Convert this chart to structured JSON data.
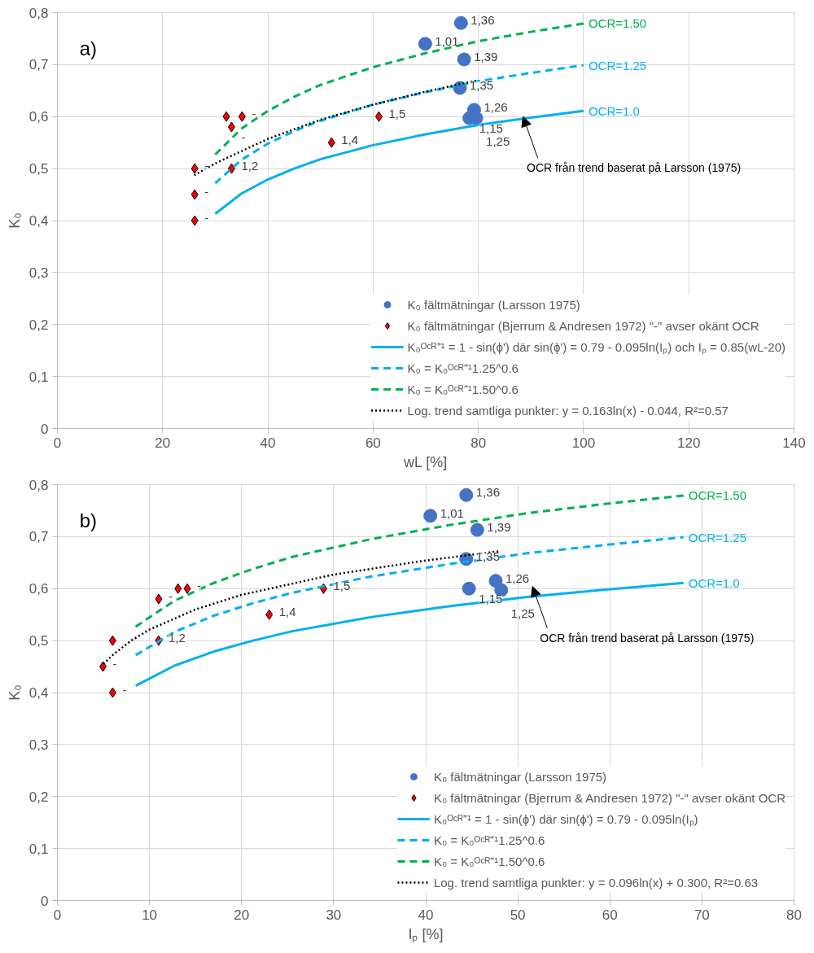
{
  "chart_data": [
    {
      "type": "scatter",
      "xlabel": "wL [%]",
      "ylabel": "K₀",
      "xlim": [
        0,
        140
      ],
      "ylim": [
        0,
        0.8
      ],
      "xticks": [
        0,
        20,
        40,
        60,
        80,
        100,
        120,
        140
      ],
      "yticks": [
        {
          "value": 0,
          "label": "0"
        },
        {
          "value": 0.1,
          "label": "0,1"
        },
        {
          "value": 0.2,
          "label": "0,2"
        },
        {
          "value": 0.3,
          "label": "0,3"
        },
        {
          "value": 0.4,
          "label": "0,4"
        },
        {
          "value": 0.5,
          "label": "0,5"
        },
        {
          "value": 0.6,
          "label": "0,6"
        },
        {
          "value": 0.7,
          "label": "0,7"
        },
        {
          "value": 0.8,
          "label": "0,8"
        }
      ],
      "grid": true,
      "legend": "bottom right",
      "series": [
        {
          "name": "K₀ fältmätningar (Larsson 1975)",
          "marker": "circle",
          "color": "#4472c4",
          "x": [
            76.7,
            69.9,
            77.3,
            76.5,
            79.2,
            78.3,
            79.6
          ],
          "values": [
            0.78,
            0.74,
            0.71,
            0.655,
            0.613,
            0.597,
            0.597
          ]
        },
        {
          "name": "K₀ fältmätningar (Bjerrum & Andresen 1972) \"-\" avser okänt OCR",
          "marker": "diamond",
          "color": "#ff0000",
          "x": [
            32.1,
            35.1,
            33.1,
            26.1,
            33.1,
            26.1,
            26.1,
            52.1,
            61.1
          ],
          "values": [
            0.6,
            0.6,
            0.58,
            0.5,
            0.5,
            0.45,
            0.4,
            0.55,
            0.6
          ]
        },
        {
          "name": "K₀ᴼᶜᴿ⁼¹ = 1 - sin(ϕ') där sin(ϕ') = 0.79 - 0.095ln(Iₚ) och Iₚ = 0.85(wL-20)",
          "type": "line",
          "line_style": "solid",
          "color": "#00b0f0",
          "x": [
            30,
            35,
            40,
            45,
            50,
            60,
            70,
            80,
            90,
            100
          ],
          "values": [
            0.413,
            0.452,
            0.479,
            0.5,
            0.518,
            0.545,
            0.566,
            0.584,
            0.598,
            0.611
          ]
        },
        {
          "name": "K₀ = K₀ᴼᶜᴿ⁼¹1.25^0.6",
          "type": "line",
          "line_style": "dashed",
          "color": "#00b0f0",
          "x": [
            30,
            35,
            40,
            45,
            50,
            60,
            70,
            80,
            90,
            100
          ],
          "values": [
            0.472,
            0.517,
            0.548,
            0.572,
            0.592,
            0.623,
            0.647,
            0.668,
            0.684,
            0.699
          ]
        },
        {
          "name": "K₀ = K₀ᴼᶜᴿ⁼¹1.50^0.6",
          "type": "line",
          "line_style": "dashed",
          "color": "#00b050",
          "x": [
            30,
            35,
            40,
            45,
            50,
            60,
            70,
            80,
            90,
            100
          ],
          "values": [
            0.527,
            0.577,
            0.611,
            0.638,
            0.661,
            0.695,
            0.722,
            0.745,
            0.763,
            0.779
          ]
        },
        {
          "name": "Log. trend samtliga punkter: y = 0.163ln(x) - 0.044, R²=0.57",
          "type": "line",
          "line_style": "dotted",
          "color": "#000000",
          "x": [
            26,
            30,
            40,
            50,
            60,
            70,
            80
          ],
          "values": [
            0.487,
            0.51,
            0.557,
            0.594,
            0.623,
            0.648,
            0.67
          ]
        }
      ],
      "annotations": [
        "a)",
        {
          "text": "OCR från trend baserat på Larsson (1975)",
          "x": 88.5,
          "y": 0.6
        },
        {
          "text": "OCR=1.50",
          "x": 100,
          "y": 0.779
        },
        {
          "text": "OCR=1.25",
          "x": 100,
          "y": 0.699
        },
        {
          "text": "OCR=1.0",
          "x": 100,
          "y": 0.611
        },
        {
          "text": "1,36",
          "x": 76.7,
          "y": 0.78
        },
        {
          "text": "1,01",
          "x": 69.9,
          "y": 0.74
        },
        {
          "text": "1,39",
          "x": 77.3,
          "y": 0.71
        },
        {
          "text": "1,35",
          "x": 76.5,
          "y": 0.655
        },
        {
          "text": "1,26",
          "x": 79.2,
          "y": 0.613
        },
        {
          "text": "1,15",
          "x": 78.3,
          "y": 0.597
        },
        {
          "text": "1,25",
          "x": 79.6,
          "y": 0.597
        },
        {
          "text": "-",
          "x": 35.1,
          "y": 0.6
        },
        {
          "text": "-",
          "x": 33.1,
          "y": 0.58
        },
        {
          "text": "-",
          "x": 26.1,
          "y": 0.5
        },
        {
          "text": "1,2",
          "x": 33.1,
          "y": 0.5
        },
        {
          "text": "-",
          "x": 26.1,
          "y": 0.45
        },
        {
          "text": "-",
          "x": 26.1,
          "y": 0.4
        },
        {
          "text": "1,4",
          "x": 52.1,
          "y": 0.55
        },
        {
          "text": "1,5",
          "x": 61.1,
          "y": 0.6
        }
      ]
    },
    {
      "type": "scatter",
      "xlabel": "Iₚ [%]",
      "ylabel": "K₀",
      "xlim": [
        0,
        80
      ],
      "ylim": [
        0,
        0.8
      ],
      "xticks": [
        0,
        10,
        20,
        30,
        40,
        50,
        60,
        70,
        80
      ],
      "yticks": [
        {
          "value": 0,
          "label": "0"
        },
        {
          "value": 0.1,
          "label": "0,1"
        },
        {
          "value": 0.2,
          "label": "0,2"
        },
        {
          "value": 0.3,
          "label": "0,3"
        },
        {
          "value": 0.4,
          "label": "0,4"
        },
        {
          "value": 0.5,
          "label": "0,5"
        },
        {
          "value": 0.6,
          "label": "0,6"
        },
        {
          "value": 0.7,
          "label": "0,7"
        },
        {
          "value": 0.8,
          "label": "0,8"
        }
      ],
      "grid": true,
      "legend": "bottom right",
      "series": [
        {
          "name": "K₀ fältmätningar (Larsson 1975)",
          "marker": "circle",
          "color": "#4472c4",
          "x": [
            44.4,
            40.5,
            45.6,
            44.4,
            47.6,
            44.7,
            48.2
          ],
          "values": [
            0.78,
            0.74,
            0.713,
            0.657,
            0.615,
            0.6,
            0.597
          ]
        },
        {
          "name": "K₀ fältmätningar (Bjerrum & Andresen 1972) \"-\" avser okänt OCR",
          "marker": "diamond",
          "color": "#ff0000",
          "x": [
            4.95,
            6.0,
            6.0,
            11.0,
            13.1,
            14.1,
            11.0,
            23.0,
            28.9
          ],
          "values": [
            0.45,
            0.5,
            0.4,
            0.58,
            0.6,
            0.6,
            0.5,
            0.55,
            0.6
          ]
        },
        {
          "name": "K₀ᴼᶜᴿ⁼¹ = 1 - sin(ϕ') där sin(ϕ') = 0.79 - 0.095ln(Iₚ)",
          "type": "line",
          "line_style": "solid",
          "color": "#00b0f0",
          "x": [
            8.5,
            12.75,
            17,
            21.25,
            25.5,
            34,
            42.5,
            51,
            59.5,
            68
          ],
          "values": [
            0.413,
            0.452,
            0.479,
            0.5,
            0.518,
            0.545,
            0.566,
            0.584,
            0.598,
            0.611
          ]
        },
        {
          "name": "K₀ = K₀ᴼᶜᴿ⁼¹1.25^0.6",
          "type": "line",
          "line_style": "dashed",
          "color": "#00b0f0",
          "x": [
            8.5,
            12.75,
            17,
            21.25,
            25.5,
            34,
            42.5,
            51,
            59.5,
            68
          ],
          "values": [
            0.472,
            0.517,
            0.548,
            0.572,
            0.592,
            0.623,
            0.647,
            0.668,
            0.684,
            0.699
          ]
        },
        {
          "name": "K₀ = K₀ᴼᶜᴿ⁼¹1.50^0.6",
          "type": "line",
          "line_style": "dashed",
          "color": "#00b050",
          "x": [
            8.5,
            12.75,
            17,
            21.25,
            25.5,
            34,
            42.5,
            51,
            59.5,
            68
          ],
          "values": [
            0.527,
            0.577,
            0.611,
            0.638,
            0.661,
            0.695,
            0.722,
            0.745,
            0.763,
            0.779
          ]
        },
        {
          "name": "Log. trend samtliga punkter: y = 0.096ln(x) + 0.300, R²=0.63",
          "type": "line",
          "line_style": "dotted",
          "color": "#000000",
          "x": [
            5,
            6,
            8,
            10,
            15,
            20,
            30,
            40,
            48
          ],
          "values": [
            0.455,
            0.472,
            0.5,
            0.521,
            0.56,
            0.588,
            0.627,
            0.654,
            0.672
          ]
        }
      ],
      "annotations": [
        "b)",
        "OCR från trend baserat på Larsson (1975)",
        {
          "text": "OCR=1.50",
          "x": 68,
          "y": 0.779
        },
        {
          "text": "OCR=1.25",
          "x": 68,
          "y": 0.699
        },
        {
          "text": "OCR=1.0",
          "x": 68,
          "y": 0.611
        },
        {
          "text": "1,36",
          "x": 44.4,
          "y": 0.78
        },
        {
          "text": "1,01",
          "x": 40.5,
          "y": 0.74
        },
        {
          "text": "1,39",
          "x": 45.6,
          "y": 0.713
        },
        {
          "text": "1,35",
          "x": 44.4,
          "y": 0.657
        },
        {
          "text": "1,26",
          "x": 47.6,
          "y": 0.615
        },
        {
          "text": "1,15",
          "x": 44.7,
          "y": 0.6
        },
        {
          "text": "1,25",
          "x": 48.2,
          "y": 0.597
        },
        {
          "text": "-",
          "x": 4.95,
          "y": 0.45
        },
        {
          "text": "-",
          "x": 6.0,
          "y": 0.4
        },
        {
          "text": "-",
          "x": 11.0,
          "y": 0.58
        },
        {
          "text": "-",
          "x": 14.1,
          "y": 0.6
        },
        {
          "text": "1,2",
          "x": 11.0,
          "y": 0.5
        },
        {
          "text": "1,4",
          "x": 23.0,
          "y": 0.55
        },
        {
          "text": "1,5",
          "x": 28.9,
          "y": 0.6
        }
      ]
    }
  ]
}
